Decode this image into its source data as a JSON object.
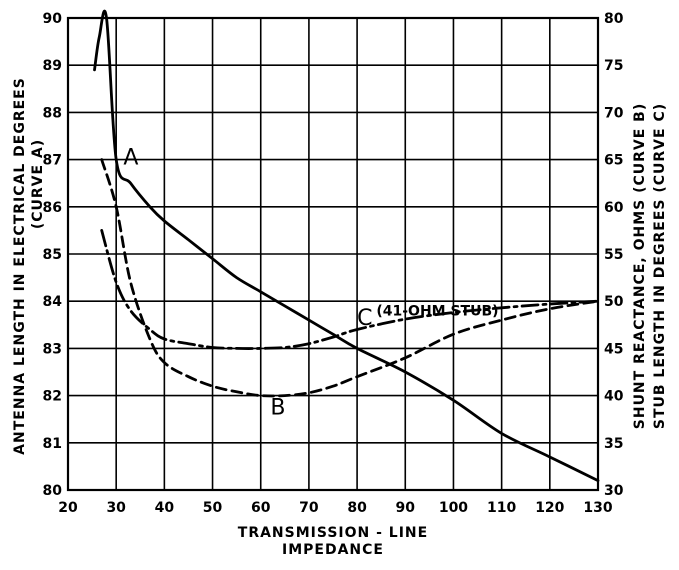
{
  "chart_data": {
    "type": "line",
    "xlabel_line1": "TRANSMISSION - LINE",
    "xlabel_line2": "IMPEDANCE",
    "ylabel_left_line1": "ANTENNA LENGTH IN ELECTRICAL DEGREES",
    "ylabel_left_line2": "(CURVE A)",
    "ylabel_right_line1": "SHUNT REACTANCE, OHMS (CURVE B)",
    "ylabel_right_line2": "STUB LENGTH IN DEGREES (CURVE C)",
    "xlim": [
      20,
      130
    ],
    "ylim_left": [
      80,
      90
    ],
    "ylim_right": [
      30,
      80
    ],
    "x_ticks": [
      20,
      30,
      40,
      50,
      60,
      70,
      80,
      90,
      100,
      110,
      120,
      130
    ],
    "y_left_ticks": [
      80,
      81,
      82,
      83,
      84,
      85,
      86,
      87,
      88,
      89,
      90
    ],
    "y_right_ticks": [
      30,
      35,
      40,
      45,
      50,
      55,
      60,
      65,
      70,
      75,
      80
    ],
    "grid": true,
    "series": [
      {
        "name": "A",
        "axis": "left",
        "style": "solid",
        "x": [
          25.5,
          26.5,
          28,
          30,
          33,
          37,
          40,
          45,
          50,
          55,
          60,
          65,
          70,
          75,
          80,
          90,
          100,
          110,
          120,
          130
        ],
        "y": [
          88.9,
          89.6,
          90.0,
          87.0,
          86.5,
          86.0,
          85.7,
          85.3,
          84.9,
          84.5,
          84.2,
          83.9,
          83.6,
          83.3,
          83.0,
          82.5,
          81.9,
          81.2,
          80.7,
          80.2
        ]
      },
      {
        "name": "B",
        "axis": "right",
        "style": "dashed",
        "x": [
          27,
          30,
          33,
          37,
          40,
          45,
          50,
          55,
          60,
          65,
          70,
          75,
          80,
          90,
          100,
          110,
          120,
          130
        ],
        "y": [
          65,
          60,
          52,
          46,
          43.5,
          42,
          41,
          40.4,
          40,
          40,
          40.3,
          41,
          42,
          44,
          46.5,
          48,
          49.2,
          50
        ]
      },
      {
        "name": "C",
        "axis": "right",
        "style": "dash-dot",
        "x": [
          27,
          30,
          33,
          37,
          40,
          45,
          50,
          55,
          60,
          65,
          70,
          75,
          80,
          90,
          100,
          110,
          120,
          130
        ],
        "y": [
          57.5,
          52,
          49,
          47,
          46,
          45.5,
          45.1,
          45,
          45,
          45.1,
          45.5,
          46.2,
          47,
          48.1,
          48.8,
          49.3,
          49.7,
          50
        ]
      }
    ],
    "labels": {
      "a": "A",
      "b": "B",
      "c": "C",
      "c_note": "(41-OHM STUB)"
    }
  }
}
